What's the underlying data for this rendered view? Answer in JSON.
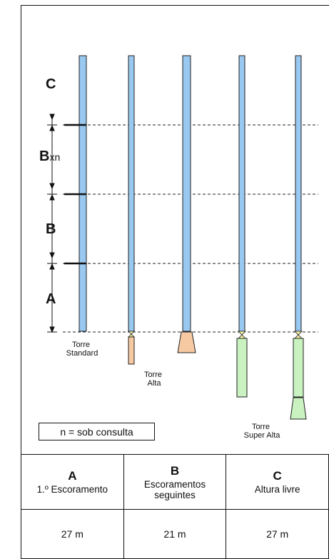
{
  "figure": {
    "dimensions": {
      "C": "C",
      "Bxn_letter": "B",
      "Bxn_suffix": "xn",
      "B": "B",
      "A": "A"
    },
    "towers": {
      "standard": [
        "Torre",
        "Standard"
      ],
      "alta": [
        "Torre",
        "Alta"
      ],
      "super_alta": [
        "Torre",
        "Super Alta"
      ]
    },
    "legend": "n = sob consulta",
    "colors": {
      "mast": "#99c8f0",
      "alta_base": "#f6c9a2",
      "super_alta_base": "#c9f2c0"
    }
  },
  "table": {
    "columns": [
      {
        "letter": "A",
        "desc": "1.º Escoramento",
        "value": "27 m"
      },
      {
        "letter": "B",
        "desc": "Escoramentos seguintes",
        "value": "21 m"
      },
      {
        "letter": "C",
        "desc": "Altura livre",
        "value": "27 m"
      }
    ]
  }
}
